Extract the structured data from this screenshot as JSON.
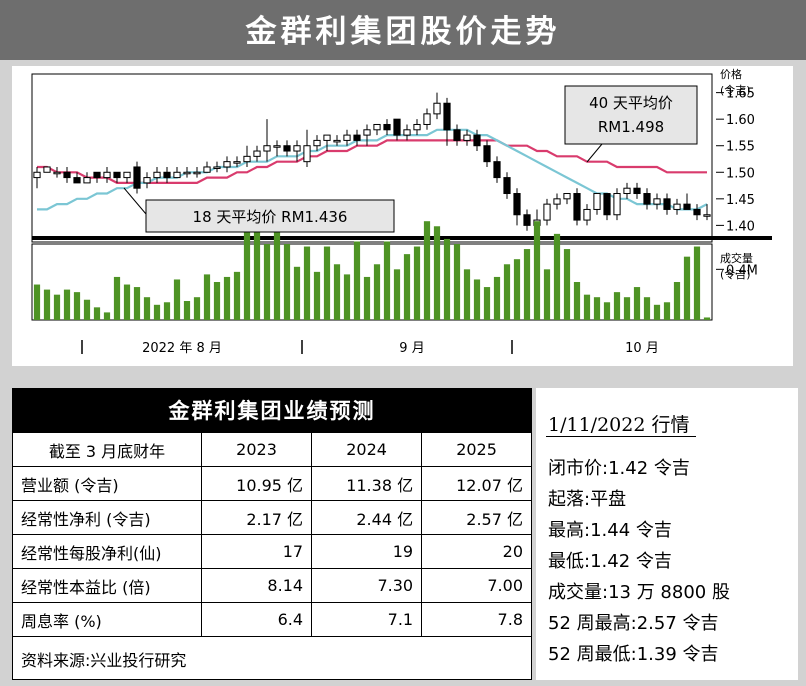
{
  "header": {
    "title": "金群利集团股价走势"
  },
  "chart_data": {
    "type": "candlestick",
    "price_axis": {
      "title_line1": "价格",
      "title_line2": "(令吉)",
      "ticks": [
        "1.65",
        "1.60",
        "1.55",
        "1.50",
        "1.45",
        "1.40"
      ],
      "tick_values": [
        1.65,
        1.6,
        1.55,
        1.5,
        1.45,
        1.4
      ],
      "ylim": [
        1.38,
        1.67
      ]
    },
    "volume_axis": {
      "title_line1": "成交量",
      "title_line2": "(令吉)",
      "tick_label": "0.4M",
      "tick_value": 0.4,
      "ylim": [
        0,
        0.6
      ]
    },
    "x_labels": [
      "2022 年 8 月",
      "9 月",
      "10 月"
    ],
    "candles": [
      {
        "o": 1.49,
        "c": 1.5,
        "h": 1.51,
        "l": 1.47
      },
      {
        "o": 1.5,
        "c": 1.51,
        "h": 1.51,
        "l": 1.5
      },
      {
        "o": 1.5,
        "c": 1.5,
        "h": 1.51,
        "l": 1.49
      },
      {
        "o": 1.5,
        "c": 1.49,
        "h": 1.51,
        "l": 1.48
      },
      {
        "o": 1.49,
        "c": 1.48,
        "h": 1.5,
        "l": 1.48
      },
      {
        "o": 1.48,
        "c": 1.49,
        "h": 1.5,
        "l": 1.48
      },
      {
        "o": 1.5,
        "c": 1.49,
        "h": 1.5,
        "l": 1.48
      },
      {
        "o": 1.49,
        "c": 1.5,
        "h": 1.51,
        "l": 1.48
      },
      {
        "o": 1.5,
        "c": 1.49,
        "h": 1.5,
        "l": 1.48
      },
      {
        "o": 1.49,
        "c": 1.5,
        "h": 1.5,
        "l": 1.48
      },
      {
        "o": 1.51,
        "c": 1.47,
        "h": 1.52,
        "l": 1.46
      },
      {
        "o": 1.48,
        "c": 1.49,
        "h": 1.5,
        "l": 1.47
      },
      {
        "o": 1.49,
        "c": 1.5,
        "h": 1.51,
        "l": 1.48
      },
      {
        "o": 1.5,
        "c": 1.49,
        "h": 1.51,
        "l": 1.48
      },
      {
        "o": 1.49,
        "c": 1.5,
        "h": 1.51,
        "l": 1.49
      },
      {
        "o": 1.5,
        "c": 1.5,
        "h": 1.51,
        "l": 1.49
      },
      {
        "o": 1.5,
        "c": 1.5,
        "h": 1.51,
        "l": 1.49
      },
      {
        "o": 1.5,
        "c": 1.51,
        "h": 1.52,
        "l": 1.5
      },
      {
        "o": 1.51,
        "c": 1.51,
        "h": 1.52,
        "l": 1.5
      },
      {
        "o": 1.51,
        "c": 1.52,
        "h": 1.53,
        "l": 1.5
      },
      {
        "o": 1.52,
        "c": 1.52,
        "h": 1.53,
        "l": 1.51
      },
      {
        "o": 1.52,
        "c": 1.53,
        "h": 1.55,
        "l": 1.51
      },
      {
        "o": 1.53,
        "c": 1.54,
        "h": 1.55,
        "l": 1.52
      },
      {
        "o": 1.54,
        "c": 1.55,
        "h": 1.6,
        "l": 1.52
      },
      {
        "o": 1.55,
        "c": 1.55,
        "h": 1.56,
        "l": 1.53
      },
      {
        "o": 1.55,
        "c": 1.54,
        "h": 1.56,
        "l": 1.53
      },
      {
        "o": 1.54,
        "c": 1.55,
        "h": 1.56,
        "l": 1.52
      },
      {
        "o": 1.52,
        "c": 1.55,
        "h": 1.58,
        "l": 1.51
      },
      {
        "o": 1.55,
        "c": 1.56,
        "h": 1.57,
        "l": 1.54
      },
      {
        "o": 1.56,
        "c": 1.57,
        "h": 1.57,
        "l": 1.54
      },
      {
        "o": 1.56,
        "c": 1.56,
        "h": 1.57,
        "l": 1.55
      },
      {
        "o": 1.56,
        "c": 1.57,
        "h": 1.58,
        "l": 1.55
      },
      {
        "o": 1.57,
        "c": 1.56,
        "h": 1.58,
        "l": 1.55
      },
      {
        "o": 1.57,
        "c": 1.58,
        "h": 1.59,
        "l": 1.55
      },
      {
        "o": 1.58,
        "c": 1.59,
        "h": 1.59,
        "l": 1.57
      },
      {
        "o": 1.59,
        "c": 1.58,
        "h": 1.6,
        "l": 1.57
      },
      {
        "o": 1.6,
        "c": 1.57,
        "h": 1.6,
        "l": 1.56
      },
      {
        "o": 1.57,
        "c": 1.58,
        "h": 1.59,
        "l": 1.56
      },
      {
        "o": 1.58,
        "c": 1.59,
        "h": 1.6,
        "l": 1.57
      },
      {
        "o": 1.59,
        "c": 1.61,
        "h": 1.62,
        "l": 1.58
      },
      {
        "o": 1.61,
        "c": 1.63,
        "h": 1.65,
        "l": 1.6
      },
      {
        "o": 1.63,
        "c": 1.58,
        "h": 1.64,
        "l": 1.55
      },
      {
        "o": 1.58,
        "c": 1.56,
        "h": 1.59,
        "l": 1.55
      },
      {
        "o": 1.56,
        "c": 1.57,
        "h": 1.58,
        "l": 1.55
      },
      {
        "o": 1.57,
        "c": 1.55,
        "h": 1.58,
        "l": 1.54
      },
      {
        "o": 1.55,
        "c": 1.52,
        "h": 1.56,
        "l": 1.51
      },
      {
        "o": 1.52,
        "c": 1.49,
        "h": 1.53,
        "l": 1.48
      },
      {
        "o": 1.49,
        "c": 1.46,
        "h": 1.5,
        "l": 1.45
      },
      {
        "o": 1.46,
        "c": 1.42,
        "h": 1.47,
        "l": 1.4
      },
      {
        "o": 1.42,
        "c": 1.4,
        "h": 1.43,
        "l": 1.39
      },
      {
        "o": 1.4,
        "c": 1.41,
        "h": 1.43,
        "l": 1.39
      },
      {
        "o": 1.41,
        "c": 1.44,
        "h": 1.45,
        "l": 1.4
      },
      {
        "o": 1.44,
        "c": 1.45,
        "h": 1.46,
        "l": 1.43
      },
      {
        "o": 1.45,
        "c": 1.46,
        "h": 1.46,
        "l": 1.44
      },
      {
        "o": 1.46,
        "c": 1.41,
        "h": 1.47,
        "l": 1.4
      },
      {
        "o": 1.41,
        "c": 1.43,
        "h": 1.44,
        "l": 1.4
      },
      {
        "o": 1.43,
        "c": 1.46,
        "h": 1.46,
        "l": 1.42
      },
      {
        "o": 1.46,
        "c": 1.42,
        "h": 1.46,
        "l": 1.41
      },
      {
        "o": 1.42,
        "c": 1.46,
        "h": 1.47,
        "l": 1.41
      },
      {
        "o": 1.46,
        "c": 1.47,
        "h": 1.48,
        "l": 1.45
      },
      {
        "o": 1.47,
        "c": 1.46,
        "h": 1.48,
        "l": 1.45
      },
      {
        "o": 1.46,
        "c": 1.44,
        "h": 1.47,
        "l": 1.43
      },
      {
        "o": 1.44,
        "c": 1.45,
        "h": 1.46,
        "l": 1.43
      },
      {
        "o": 1.45,
        "c": 1.43,
        "h": 1.46,
        "l": 1.42
      },
      {
        "o": 1.43,
        "c": 1.44,
        "h": 1.45,
        "l": 1.42
      },
      {
        "o": 1.44,
        "c": 1.43,
        "h": 1.46,
        "l": 1.43
      },
      {
        "o": 1.43,
        "c": 1.42,
        "h": 1.44,
        "l": 1.41
      },
      {
        "o": 1.42,
        "c": 1.42,
        "h": 1.44,
        "l": 1.41
      }
    ],
    "ma18": [
      1.43,
      1.43,
      1.44,
      1.44,
      1.45,
      1.45,
      1.46,
      1.46,
      1.47,
      1.47,
      1.48,
      1.48,
      1.49,
      1.49,
      1.49,
      1.5,
      1.5,
      1.5,
      1.51,
      1.51,
      1.51,
      1.52,
      1.52,
      1.52,
      1.53,
      1.53,
      1.53,
      1.54,
      1.54,
      1.55,
      1.55,
      1.55,
      1.56,
      1.56,
      1.56,
      1.57,
      1.57,
      1.57,
      1.57,
      1.57,
      1.58,
      1.58,
      1.58,
      1.58,
      1.57,
      1.57,
      1.56,
      1.55,
      1.54,
      1.53,
      1.52,
      1.51,
      1.5,
      1.49,
      1.48,
      1.47,
      1.46,
      1.46,
      1.45,
      1.45,
      1.44,
      1.44,
      1.44,
      1.44,
      1.43,
      1.43,
      1.43,
      1.44
    ],
    "ma40": [
      1.51,
      1.51,
      1.5,
      1.5,
      1.5,
      1.49,
      1.49,
      1.49,
      1.48,
      1.48,
      1.48,
      1.48,
      1.48,
      1.48,
      1.48,
      1.48,
      1.48,
      1.49,
      1.49,
      1.49,
      1.5,
      1.5,
      1.51,
      1.51,
      1.52,
      1.52,
      1.52,
      1.53,
      1.53,
      1.54,
      1.54,
      1.54,
      1.55,
      1.55,
      1.55,
      1.56,
      1.56,
      1.56,
      1.56,
      1.56,
      1.56,
      1.56,
      1.56,
      1.56,
      1.56,
      1.56,
      1.56,
      1.55,
      1.55,
      1.55,
      1.54,
      1.54,
      1.53,
      1.53,
      1.53,
      1.52,
      1.52,
      1.52,
      1.51,
      1.51,
      1.51,
      1.51,
      1.51,
      1.5,
      1.5,
      1.5,
      1.5,
      1.5
    ],
    "volume": [
      0.28,
      0.24,
      0.2,
      0.24,
      0.22,
      0.16,
      0.1,
      0.06,
      0.34,
      0.28,
      0.26,
      0.18,
      0.12,
      0.14,
      0.32,
      0.15,
      0.18,
      0.36,
      0.3,
      0.34,
      0.38,
      0.7,
      0.72,
      0.6,
      0.76,
      0.6,
      0.42,
      0.58,
      0.38,
      0.58,
      0.44,
      0.36,
      0.62,
      0.34,
      0.44,
      0.62,
      0.4,
      0.52,
      0.58,
      0.78,
      0.74,
      0.64,
      0.6,
      0.4,
      0.32,
      0.26,
      0.34,
      0.44,
      0.48,
      0.56,
      0.78,
      0.4,
      0.68,
      0.56,
      0.3,
      0.2,
      0.18,
      0.14,
      0.22,
      0.18,
      0.26,
      0.18,
      0.12,
      0.14,
      0.3,
      0.5,
      0.58,
      0.02
    ],
    "annotations": {
      "ma40": "40 天平均价",
      "ma40_value": "RM1.498",
      "ma18": "18 天平均价 RM1.436"
    }
  },
  "table": {
    "title": "金群利集团业绩预测",
    "headers": [
      "截至 3 月底财年",
      "2023",
      "2024",
      "2025"
    ],
    "rows": [
      [
        "营业额 (令吉)",
        "10.95 亿",
        "11.38 亿",
        "12.07 亿"
      ],
      [
        "经常性净利 (令吉)",
        "2.17 亿",
        "2.44 亿",
        "2.57 亿"
      ],
      [
        "经常性每股净利(仙)",
        "17",
        "19",
        "20"
      ],
      [
        "经常性本益比 (倍)",
        "8.14",
        "7.30",
        "7.00"
      ],
      [
        "周息率 (%)",
        "6.4",
        "7.1",
        "7.8"
      ]
    ],
    "source": "资料来源:兴业投行研究"
  },
  "market": {
    "date": "1/11/2022 行情",
    "rows": [
      "闭市价:1.42 令吉",
      "起落:平盘",
      "最高:1.44 令吉",
      "最低:1.42 令吉",
      "成交量:13 万 8800 股",
      "52 周最高:2.57 令吉",
      "52 周最低:1.39 令吉"
    ]
  },
  "colors": {
    "ma18": "#7bc6d4",
    "ma40": "#d93b6d",
    "volume": "#4e9324",
    "candle_up": "#ffffff",
    "candle_down": "#000000"
  }
}
